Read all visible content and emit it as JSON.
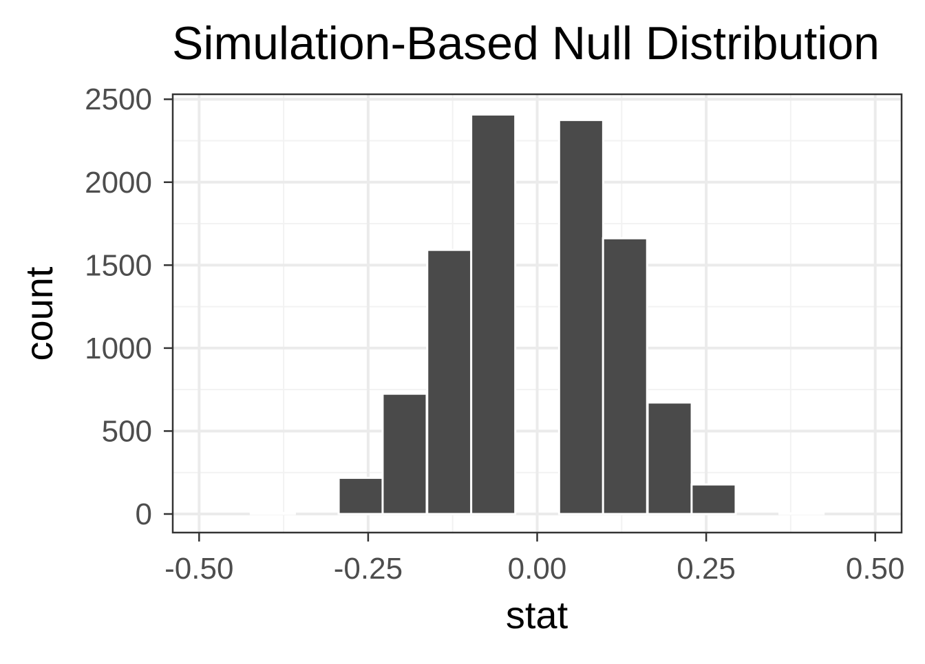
{
  "chart_data": {
    "type": "bar",
    "title": "Simulation-Based Null Distribution",
    "xlabel": "stat",
    "ylabel": "count",
    "bin_width": 0.0652,
    "bins": [
      {
        "x": -0.522,
        "count": 0
      },
      {
        "x": -0.457,
        "count": 0
      },
      {
        "x": -0.391,
        "count": 6
      },
      {
        "x": -0.326,
        "count": 0
      },
      {
        "x": -0.261,
        "count": 218
      },
      {
        "x": -0.196,
        "count": 725
      },
      {
        "x": -0.13,
        "count": 1592
      },
      {
        "x": -0.065,
        "count": 2408
      },
      {
        "x": 0.0,
        "count": 0
      },
      {
        "x": 0.065,
        "count": 2375
      },
      {
        "x": 0.13,
        "count": 1662
      },
      {
        "x": 0.196,
        "count": 672
      },
      {
        "x": 0.261,
        "count": 178
      },
      {
        "x": 0.326,
        "count": 0
      },
      {
        "x": 0.391,
        "count": 4
      },
      {
        "x": 0.457,
        "count": 0
      },
      {
        "x": 0.522,
        "count": 0
      }
    ],
    "xlim": [
      -0.539,
      0.539
    ],
    "ylim": [
      -112,
      2530
    ],
    "x_ticks": [
      -0.5,
      -0.25,
      0,
      0.25,
      0.5
    ],
    "x_tick_labels": [
      "-0.50",
      "-0.25",
      "0.00",
      "0.25",
      "0.50"
    ],
    "y_ticks": [
      0,
      500,
      1000,
      1500,
      2000,
      2500
    ],
    "y_tick_labels": [
      "0",
      "500",
      "1000",
      "1500",
      "2000",
      "2500"
    ],
    "grid": true,
    "colors": {
      "bar_fill": "#4a4a4a",
      "bar_outline": "#ffffff",
      "grid_major": "#ebebeb",
      "grid_minor": "#f2f2f2",
      "panel_border": "#333333",
      "tick_text": "#4d4d4d",
      "title_text": "#000000"
    }
  }
}
